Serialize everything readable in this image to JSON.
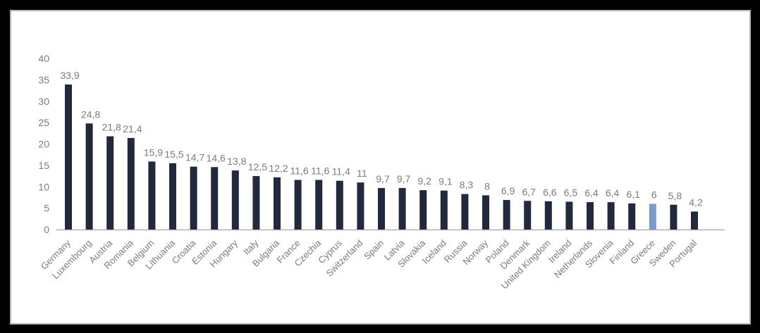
{
  "chart_data": {
    "type": "bar",
    "title": "",
    "xlabel": "",
    "ylabel": "",
    "ylim": [
      0,
      40
    ],
    "yticks": [
      0,
      5,
      10,
      15,
      20,
      25,
      30,
      35,
      40
    ],
    "grid": false,
    "legend": null,
    "decimal_separator": ",",
    "categories": [
      "Germany",
      "Luxembourg",
      "Austria",
      "Romania",
      "Belgium",
      "Lithuania",
      "Croatia",
      "Estonia",
      "Hungary",
      "Italy",
      "Bulgaria",
      "France",
      "Czechia",
      "Cyprus",
      "Switzerland",
      "Spain",
      "Latvia",
      "Slovakia",
      "Iceland",
      "Russia",
      "Norway",
      "Poland",
      "Denmark",
      "United Kingdom",
      "Ireland",
      "Netherlands",
      "Slovenia",
      "Finland",
      "Greece",
      "Sweden",
      "Portugal"
    ],
    "values": [
      33.9,
      24.8,
      21.8,
      21.4,
      15.9,
      15.5,
      14.7,
      14.6,
      13.8,
      12.5,
      12.2,
      11.6,
      11.6,
      11.4,
      11,
      9.7,
      9.7,
      9.2,
      9.1,
      8.3,
      8,
      6.9,
      6.7,
      6.6,
      6.5,
      6.4,
      6.4,
      6.1,
      6,
      5.8,
      4.2
    ],
    "data_labels": [
      "33,9",
      "24,8",
      "21,8",
      "21,4",
      "15,9",
      "15,5",
      "14,7",
      "14,6",
      "13,8",
      "12,5",
      "12,2",
      "11,6",
      "11,6",
      "11,4",
      "11",
      "9,7",
      "9,7",
      "9,2",
      "9,1",
      "8,3",
      "8",
      "6,9",
      "6,7",
      "6,6",
      "6,5",
      "6,4",
      "6,4",
      "6,1",
      "6",
      "5,8",
      "4,2"
    ],
    "highlight": {
      "category": "Greece",
      "color": "#7a9cc9"
    },
    "colors": {
      "bar": "#212a3c",
      "highlight": "#7a9cc9",
      "axis": "#b0b0b0",
      "text": "#7b7b7b"
    }
  }
}
